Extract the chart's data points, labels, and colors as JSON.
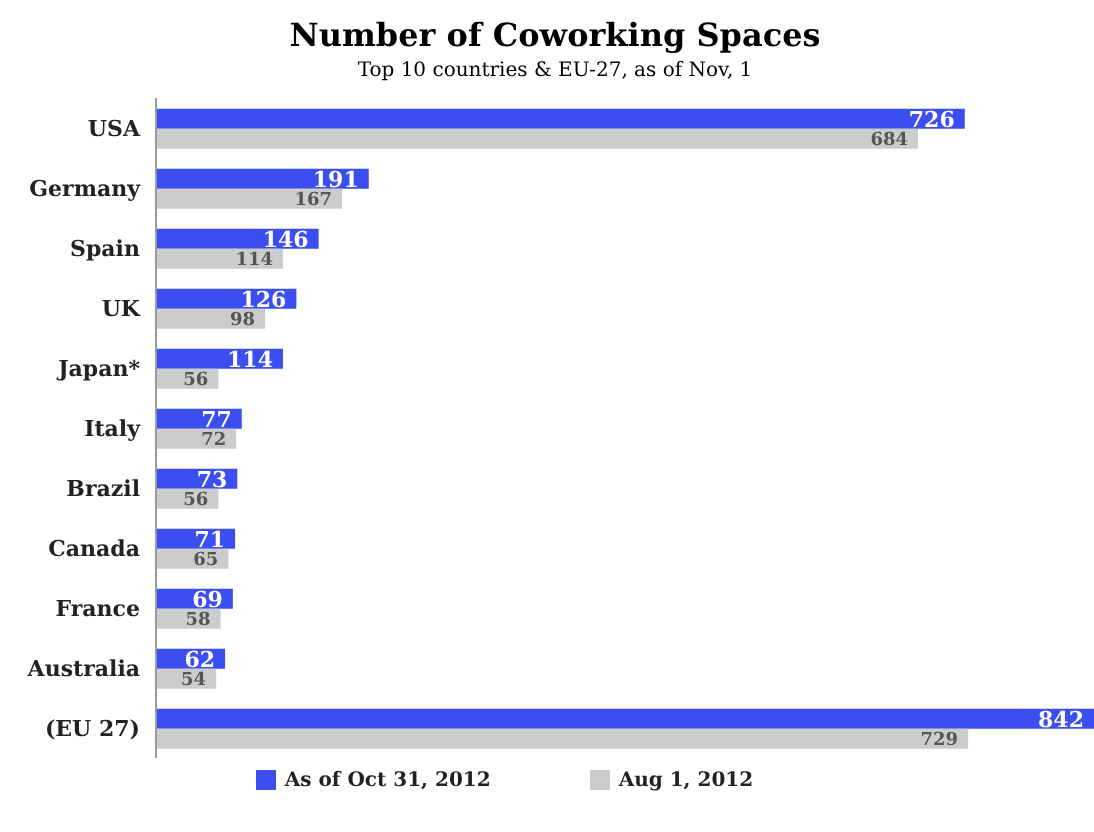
{
  "chart_data": {
    "type": "bar",
    "orientation": "horizontal",
    "title": "Number of Coworking Spaces",
    "subtitle": "Top 10 countries & EU-27, as of Nov, 1",
    "categories": [
      "USA",
      "Germany",
      "Spain",
      "UK",
      "Japan*",
      "Italy",
      "Brazil",
      "Canada",
      "France",
      "Australia",
      "(EU 27)"
    ],
    "series": [
      {
        "name": "As of Oct 31, 2012",
        "color": "#3b4ef0",
        "values": [
          726,
          191,
          146,
          126,
          114,
          77,
          73,
          71,
          69,
          62,
          842
        ]
      },
      {
        "name": "Aug 1, 2012",
        "color": "#cccccc",
        "values": [
          684,
          167,
          114,
          98,
          56,
          72,
          56,
          65,
          58,
          54,
          729
        ]
      }
    ],
    "data_labels": true,
    "xlim": [
      0,
      842
    ],
    "legend": "bottom",
    "tick_labels": "y"
  }
}
